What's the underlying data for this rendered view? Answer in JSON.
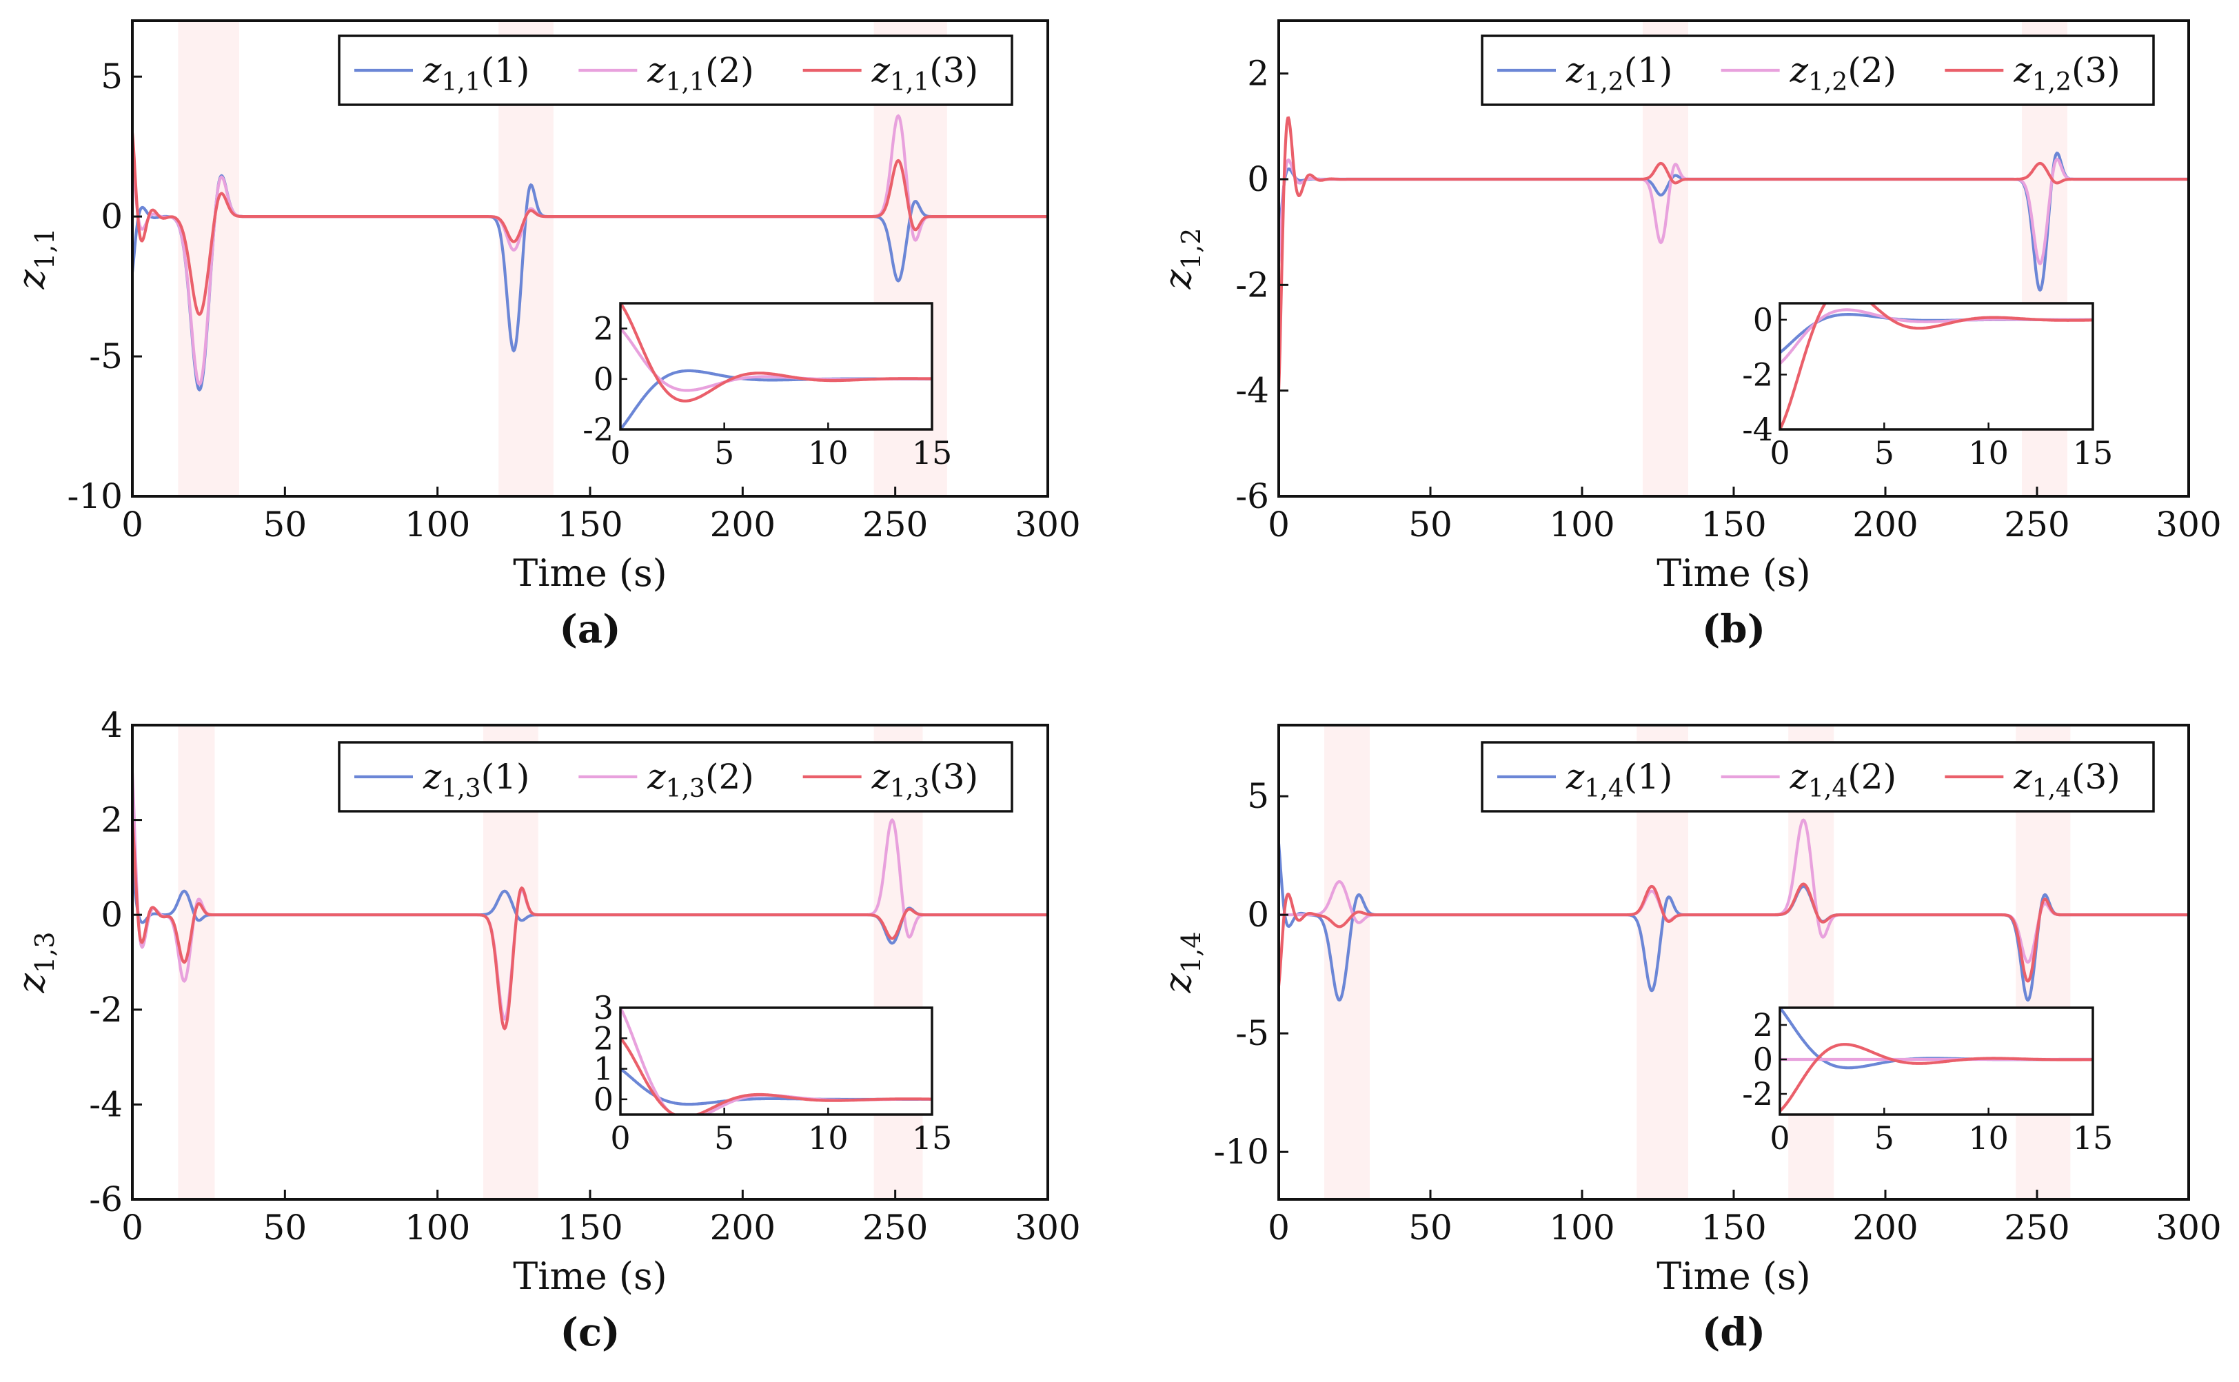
{
  "figure": {
    "series_colors": [
      "#6b86d6",
      "#e8a1dd",
      "#ea5f6a"
    ],
    "shade_color": "#fdecec"
  },
  "chart_data": [
    {
      "type": "line",
      "caption": "(a)",
      "xlabel": "Time (s)",
      "ylabel_base": "z",
      "ylabel_sub": "1,1",
      "xlim": [
        0,
        300
      ],
      "ylim": [
        -10,
        7
      ],
      "xticks": [
        0,
        50,
        100,
        150,
        200,
        250,
        300
      ],
      "yticks": [
        5,
        0,
        -5,
        -10
      ],
      "shaded_intervals": [
        [
          15,
          35
        ],
        [
          120,
          138
        ],
        [
          243,
          267
        ]
      ],
      "legend": [
        {
          "base": "z",
          "sub": "1,1",
          "arg": "(1)"
        },
        {
          "base": "z",
          "sub": "1,1",
          "arg": "(2)"
        },
        {
          "base": "z",
          "sub": "1,1",
          "arg": "(3)"
        }
      ],
      "initial": [
        -2,
        2,
        3
      ],
      "events": [
        {
          "t": 22,
          "amps": [
            -6.2,
            -6,
            -3.5
          ],
          "dur": 9
        },
        {
          "t": 125,
          "amps": [
            -4.8,
            -1.2,
            -0.9
          ],
          "dur": 7
        },
        {
          "t": 251,
          "amps": [
            -2.3,
            3.6,
            2
          ]
        },
        {
          "t": 251,
          "amps": [
            0,
            0,
            0
          ],
          "dur": 8
        }
      ],
      "inset": {
        "xlim": [
          0,
          15
        ],
        "ylim": [
          -2,
          3
        ],
        "xticks": [
          0,
          5,
          10,
          15
        ],
        "yticks": [
          2,
          0,
          -2
        ]
      }
    },
    {
      "type": "line",
      "caption": "(b)",
      "xlabel": "Time (s)",
      "ylabel_base": "z",
      "ylabel_sub": "1,2",
      "xlim": [
        0,
        300
      ],
      "ylim": [
        -6,
        3
      ],
      "xticks": [
        0,
        50,
        100,
        150,
        200,
        250,
        300
      ],
      "yticks": [
        2,
        0,
        -2,
        -4,
        -6
      ],
      "shaded_intervals": [
        [
          120,
          135
        ],
        [
          245,
          260
        ]
      ],
      "legend": [
        {
          "base": "z",
          "sub": "1,2",
          "arg": "(1)"
        },
        {
          "base": "z",
          "sub": "1,2",
          "arg": "(2)"
        },
        {
          "base": "z",
          "sub": "1,2",
          "arg": "(3)"
        }
      ],
      "initial": [
        -1.2,
        -1.6,
        -4
      ],
      "events": [
        {
          "t": 126,
          "amps": [
            -0.3,
            -1.2,
            0.3
          ],
          "dur": 6
        },
        {
          "t": 251,
          "amps": [
            -2.1,
            -1.6,
            0.3
          ],
          "dur": 7
        }
      ],
      "inset": {
        "xlim": [
          0,
          15
        ],
        "ylim": [
          -4,
          0.6
        ],
        "xticks": [
          0,
          5,
          10,
          15
        ],
        "yticks": [
          0,
          -2,
          -4
        ]
      }
    },
    {
      "type": "line",
      "caption": "(c)",
      "xlabel": "Time (s)",
      "ylabel_base": "z",
      "ylabel_sub": "1,3",
      "xlim": [
        0,
        300
      ],
      "ylim": [
        -6,
        4
      ],
      "xticks": [
        0,
        50,
        100,
        150,
        200,
        250,
        300
      ],
      "yticks": [
        4,
        2,
        0,
        -2,
        -4,
        -6
      ],
      "shaded_intervals": [
        [
          15,
          27
        ],
        [
          115,
          133
        ],
        [
          243,
          259
        ]
      ],
      "legend": [
        {
          "base": "z",
          "sub": "1,3",
          "arg": "(1)"
        },
        {
          "base": "z",
          "sub": "1,3",
          "arg": "(2)"
        },
        {
          "base": "z",
          "sub": "1,3",
          "arg": "(3)"
        }
      ],
      "initial": [
        1,
        3,
        2
      ],
      "events": [
        {
          "t": 17,
          "amps": [
            0.5,
            -1.4,
            -1
          ],
          "dur": 6
        },
        {
          "t": 122,
          "amps": [
            0.5,
            -2.2,
            -2.4
          ],
          "dur": 7
        },
        {
          "t": 249,
          "amps": [
            -0.6,
            2,
            -0.5
          ],
          "dur": 7
        }
      ],
      "inset": {
        "xlim": [
          0,
          15
        ],
        "ylim": [
          -0.5,
          3
        ],
        "xticks": [
          0,
          5,
          10,
          15
        ],
        "yticks": [
          3,
          2,
          1,
          0
        ]
      }
    },
    {
      "type": "line",
      "caption": "(d)",
      "xlabel": "Time (s)",
      "ylabel_base": "z",
      "ylabel_sub": "1,4",
      "xlim": [
        0,
        300
      ],
      "ylim": [
        -12,
        8
      ],
      "xticks": [
        0,
        50,
        100,
        150,
        200,
        250,
        300
      ],
      "yticks": [
        5,
        0,
        -5,
        -10
      ],
      "shaded_intervals": [
        [
          15,
          30
        ],
        [
          118,
          135
        ],
        [
          168,
          183
        ],
        [
          243,
          261
        ]
      ],
      "legend": [
        {
          "base": "z",
          "sub": "1,4",
          "arg": "(1)"
        },
        {
          "base": "z",
          "sub": "1,4",
          "arg": "(2)"
        },
        {
          "base": "z",
          "sub": "1,4",
          "arg": "(3)"
        }
      ],
      "initial": [
        3,
        0,
        -3
      ],
      "events": [
        {
          "t": 20,
          "amps": [
            -3.6,
            1.4,
            -0.5
          ],
          "dur": 8
        },
        {
          "t": 123,
          "amps": [
            -3.2,
            1,
            1.2
          ],
          "dur": 7
        },
        {
          "t": 173,
          "amps": [
            1.2,
            4,
            1.3
          ],
          "dur": 8
        },
        {
          "t": 247,
          "amps": [
            -3.6,
            -2,
            -2.8
          ],
          "dur": 7
        }
      ],
      "inset": {
        "xlim": [
          0,
          15
        ],
        "ylim": [
          -3.2,
          3
        ],
        "xticks": [
          0,
          5,
          10,
          15
        ],
        "yticks": [
          2,
          0,
          -2
        ]
      }
    }
  ]
}
